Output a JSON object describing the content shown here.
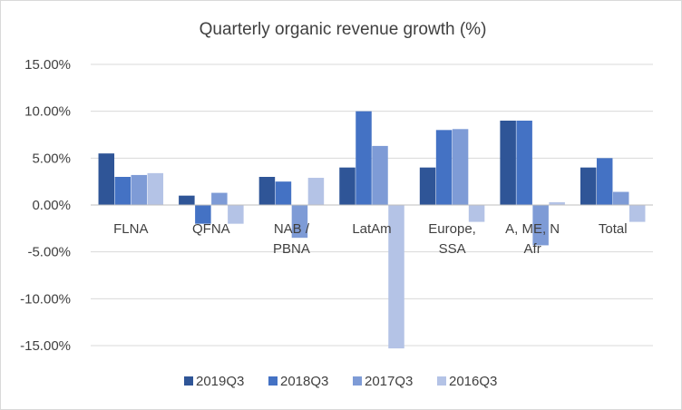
{
  "chart_data": {
    "type": "bar",
    "title": "Quarterly organic revenue growth (%)",
    "xlabel": "",
    "ylabel": "",
    "categories": [
      [
        "FLNA"
      ],
      [
        "QFNA"
      ],
      [
        "NAB /",
        "PBNA"
      ],
      [
        "LatAm"
      ],
      [
        "Europe,",
        "SSA"
      ],
      [
        "A, ME, N",
        "Afr"
      ],
      [
        "Total"
      ]
    ],
    "series": [
      {
        "name": "2019Q3",
        "color": "#2F5597",
        "values": [
          5.5,
          1.0,
          3.0,
          4.0,
          4.0,
          9.0,
          4.0
        ]
      },
      {
        "name": "2018Q3",
        "color": "#4472C4",
        "values": [
          3.0,
          -2.0,
          2.5,
          10.0,
          8.0,
          9.0,
          5.0
        ]
      },
      {
        "name": "2017Q3",
        "color": "#7E9BD6",
        "values": [
          3.2,
          1.3,
          -3.5,
          6.3,
          8.1,
          -4.3,
          1.4
        ]
      },
      {
        "name": "2016Q3",
        "color": "#B4C3E6",
        "values": [
          3.4,
          -2.0,
          2.9,
          -15.3,
          -1.8,
          0.3,
          -1.8
        ]
      }
    ],
    "ylim": [
      -15,
      15
    ],
    "yticks": [
      15,
      10,
      5,
      0,
      -5,
      -10,
      -15
    ],
    "ytick_labels": [
      "15.00%",
      "10.00%",
      "5.00%",
      "0.00%",
      "-5.00%",
      "-10.00%",
      "-15.00%"
    ],
    "grid": true,
    "legend": "bottom"
  }
}
